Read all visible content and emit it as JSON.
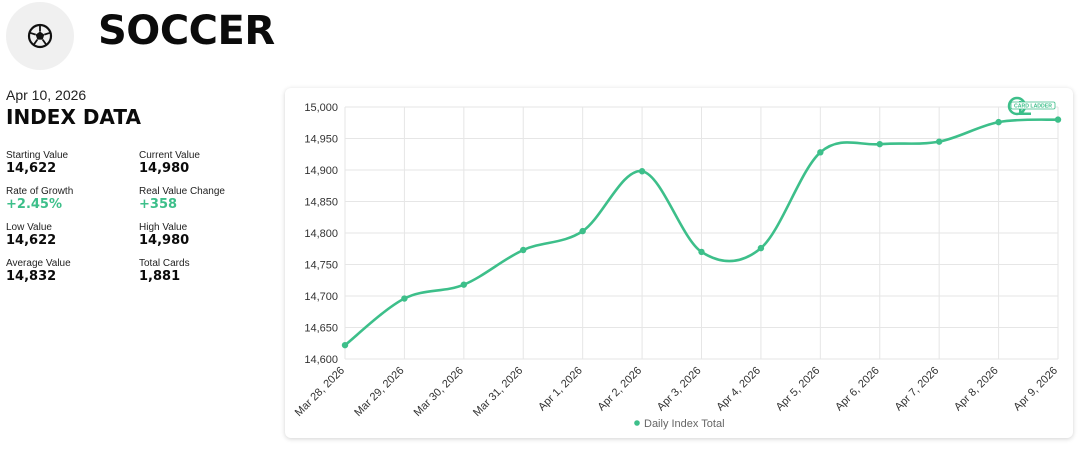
{
  "header": {
    "title": "SOCCER",
    "icon": "soccer-ball-icon"
  },
  "index": {
    "date": "Apr 10, 2026",
    "title": "INDEX DATA",
    "stats": [
      {
        "label": "Starting Value",
        "value": "14,622",
        "positive": false
      },
      {
        "label": "Current Value",
        "value": "14,980",
        "positive": false
      },
      {
        "label": "Rate of Growth",
        "value": "+2.45%",
        "positive": true
      },
      {
        "label": "Real Value Change",
        "value": "+358",
        "positive": true
      },
      {
        "label": "Low Value",
        "value": "14,622",
        "positive": false
      },
      {
        "label": "High Value",
        "value": "14,980",
        "positive": false
      },
      {
        "label": "Average Value",
        "value": "14,832",
        "positive": false
      },
      {
        "label": "Total Cards",
        "value": "1,881",
        "positive": false
      }
    ]
  },
  "brand": {
    "logo_text": "CARD LADDER",
    "color": "#3dbf8a"
  },
  "chart_data": {
    "type": "line",
    "categories": [
      "Mar 28, 2026",
      "Mar 29, 2026",
      "Mar 30, 2026",
      "Mar 31, 2026",
      "Apr 1, 2026",
      "Apr 2, 2026",
      "Apr 3, 2026",
      "Apr 4, 2026",
      "Apr 5, 2026",
      "Apr 6, 2026",
      "Apr 7, 2026",
      "Apr 8, 2026",
      "Apr 9, 2026"
    ],
    "series": [
      {
        "name": "Daily Index Total",
        "color": "#3dbf8a",
        "values": [
          14622,
          14696,
          14718,
          14773,
          14803,
          14898,
          14770,
          14776,
          14928,
          14941,
          14945,
          14976,
          14980
        ]
      }
    ],
    "yticks": [
      "15,000",
      "14,950",
      "14,900",
      "14,850",
      "14,800",
      "14,750",
      "14,700",
      "14,650",
      "14,600"
    ],
    "ylim": [
      14600,
      15000
    ],
    "grid": true,
    "legend": "bottom"
  }
}
